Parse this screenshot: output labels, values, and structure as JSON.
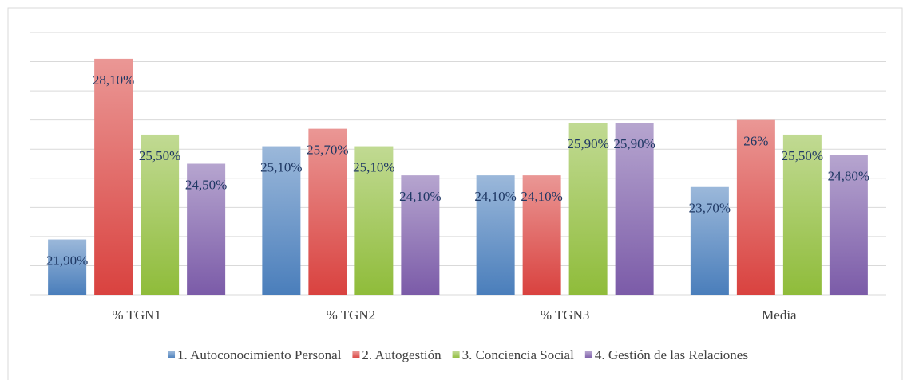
{
  "chart_data": {
    "type": "bar",
    "categories": [
      "% TGN1",
      "% TGN2",
      "% TGN3",
      "Media"
    ],
    "series": [
      {
        "name": "1. Autoconocimiento Personal",
        "color": "#4a7ebb",
        "values": [
          21.9,
          25.1,
          24.1,
          23.7
        ],
        "value_labels": [
          "21,90%",
          "25,10%",
          "24,10%",
          "23,70%"
        ]
      },
      {
        "name": "2. Autogestión",
        "color": "#d9423f",
        "values": [
          28.1,
          25.7,
          24.1,
          26
        ],
        "value_labels": [
          "28,10%",
          "25,70%",
          "24,10%",
          "26%"
        ]
      },
      {
        "name": "3. Conciencia Social",
        "color": "#8fbc3a",
        "values": [
          25.5,
          25.1,
          25.9,
          25.5
        ],
        "value_labels": [
          "25,50%",
          "25,10%",
          "25,90%",
          "25,50%"
        ]
      },
      {
        "name": "4. Gestión de las Relaciones",
        "color": "#7b5ba8",
        "values": [
          24.5,
          24.1,
          25.9,
          24.8
        ],
        "value_labels": [
          "24,50%",
          "24,10%",
          "25,90%",
          "24,80%"
        ]
      }
    ],
    "ylim": [
      20,
      29
    ],
    "yticks": [
      20,
      21,
      22,
      23,
      24,
      25,
      26,
      27,
      28,
      29
    ],
    "grid": true,
    "legend": "bottom"
  }
}
